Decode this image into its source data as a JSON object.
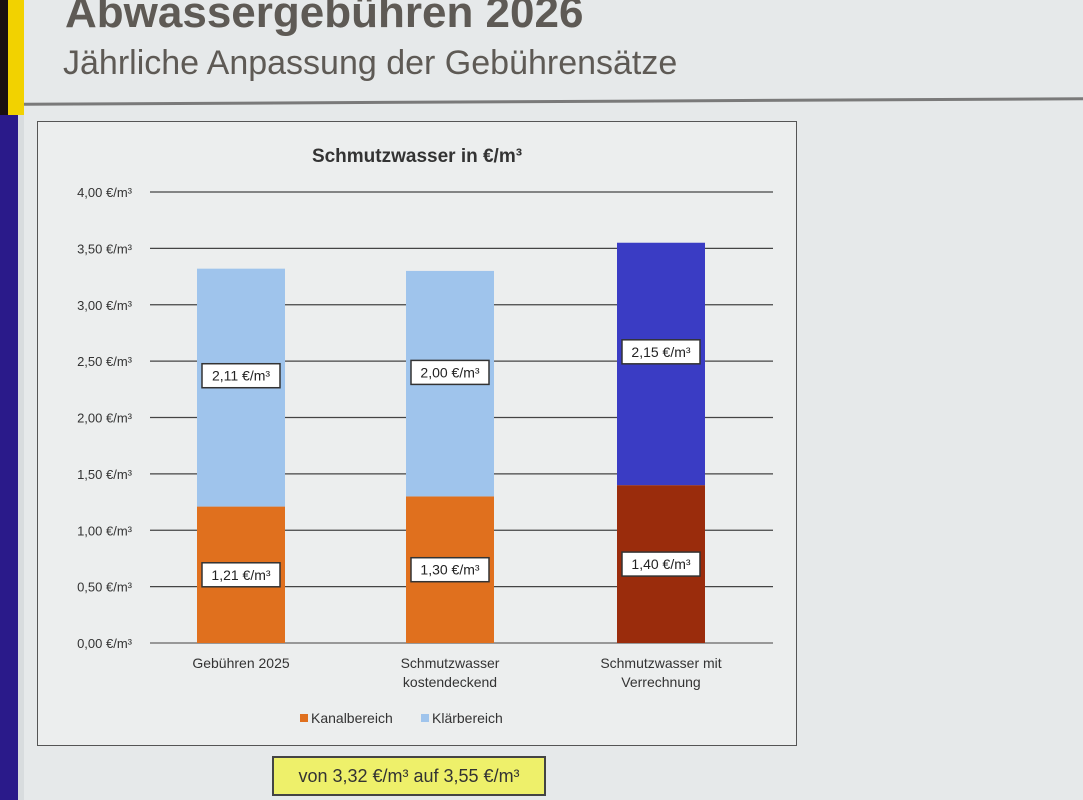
{
  "slide": {
    "title": "Abwassergebühren 2026",
    "subtitle": "Jährliche Anpassung der Gebührensätze",
    "note": "von 3,32 €/m³ auf 3,55 €/m³"
  },
  "chart_data": {
    "type": "bar",
    "stacked": true,
    "title": "Schmutzwasser in €/m³",
    "categories": [
      "Gebühren 2025",
      "Schmutzwasser kostendeckend",
      "Schmutzwasser mit Verrechnung"
    ],
    "category_lines": [
      [
        "Gebühren 2025"
      ],
      [
        "Schmutzwasser",
        "kostendeckend"
      ],
      [
        "Schmutzwasser mit",
        "Verrechnung"
      ]
    ],
    "series": [
      {
        "name": "Kanalbereich",
        "values": [
          1.21,
          1.3,
          1.4
        ],
        "data_labels": [
          "1,21 €/m³",
          "1,30 €/m³",
          "1,40 €/m³"
        ],
        "colors": [
          "#e0701e",
          "#e0701e",
          "#9a2c0c"
        ]
      },
      {
        "name": "Klärbereich",
        "values": [
          2.11,
          2.0,
          2.15
        ],
        "data_labels": [
          "2,11 €/m³",
          "2,00 €/m³",
          "2,15 €/m³"
        ],
        "colors": [
          "#9fc4ec",
          "#9fc4ec",
          "#3a3cc4"
        ]
      }
    ],
    "ylim": [
      0,
      4
    ],
    "yticks": [
      0,
      0.5,
      1,
      1.5,
      2,
      2.5,
      3,
      3.5,
      4
    ],
    "ytick_labels": [
      "0,00 €/m³",
      "0,50 €/m³",
      "1,00 €/m³",
      "1,50 €/m³",
      "2,00 €/m³",
      "2,50 €/m³",
      "3,00 €/m³",
      "3,50 €/m³",
      "4,00 €/m³"
    ],
    "grid": true,
    "legend": "bottom"
  }
}
